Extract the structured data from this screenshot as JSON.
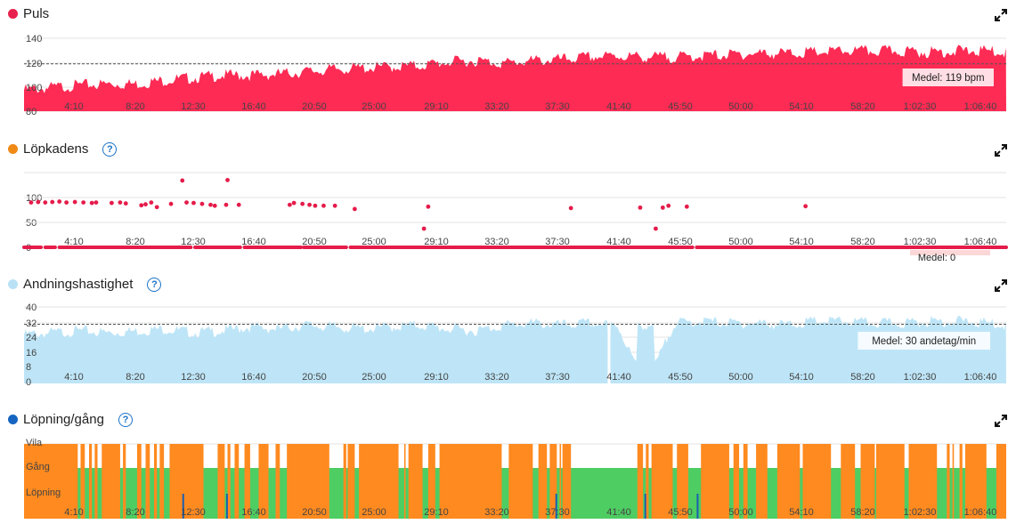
{
  "panels": [
    {
      "title": "Puls",
      "color": "#e8224e",
      "help": false
    },
    {
      "title": "Löpkadens",
      "color": "#f08a16",
      "help": true
    },
    {
      "title": "Andningshastighet",
      "color": "#b9e1f5",
      "help": true
    },
    {
      "title": "Löpning/gång",
      "color": "#1565c0",
      "help": true
    }
  ],
  "help_symbol": "?",
  "x_ticks": [
    "4:10",
    "8:20",
    "12:30",
    "16:40",
    "20:50",
    "25:00",
    "29:10",
    "33:20",
    "37:30",
    "41:40",
    "45:50",
    "50:00",
    "54:10",
    "58:20",
    "1:02:30",
    "1:06:40"
  ],
  "chart_data": [
    {
      "type": "area",
      "name": "Puls",
      "y_ticks": [
        "140",
        "120",
        "100",
        "80"
      ],
      "ylim": [
        80,
        140
      ],
      "avg": 119,
      "avg_label": "Medel: 119 bpm",
      "fill": "#fe2b54",
      "x_minutes": [
        0,
        2,
        4,
        6,
        8,
        10,
        12,
        14,
        16,
        18,
        20,
        22,
        24,
        26,
        28,
        30,
        32,
        34,
        36,
        38,
        40,
        42,
        44,
        46,
        48,
        50,
        52,
        54,
        56,
        58,
        60,
        62,
        64,
        66,
        68,
        69.5
      ],
      "values": [
        100,
        102,
        104,
        105,
        105,
        108,
        110,
        112,
        112,
        113,
        115,
        117,
        118,
        119,
        120,
        123,
        124,
        122,
        124,
        125,
        127,
        128,
        127,
        127,
        128,
        129,
        130,
        130,
        131,
        132,
        132,
        132,
        131,
        132,
        132,
        131
      ]
    },
    {
      "type": "scatter",
      "name": "Löpkadens",
      "y_ticks": [
        "100",
        "50",
        "0"
      ],
      "ylim": [
        0,
        160
      ],
      "avg_label": "Medel: 0",
      "color": "#e51b4a",
      "points": [
        [
          0.5,
          96
        ],
        [
          1.0,
          97
        ],
        [
          1.5,
          96
        ],
        [
          2.0,
          97
        ],
        [
          2.5,
          98
        ],
        [
          3.0,
          96
        ],
        [
          3.6,
          97
        ],
        [
          4.2,
          96
        ],
        [
          4.8,
          95
        ],
        [
          5.1,
          96
        ],
        [
          6.2,
          95
        ],
        [
          6.8,
          96
        ],
        [
          7.2,
          94
        ],
        [
          8.3,
          90
        ],
        [
          8.6,
          92
        ],
        [
          9.0,
          96
        ],
        [
          9.4,
          86
        ],
        [
          10.4,
          93
        ],
        [
          11.2,
          143
        ],
        [
          11.5,
          96
        ],
        [
          12.0,
          95
        ],
        [
          12.6,
          93
        ],
        [
          13.2,
          91
        ],
        [
          13.5,
          89
        ],
        [
          14.4,
          144
        ],
        [
          14.3,
          91
        ],
        [
          15.2,
          91
        ],
        [
          18.8,
          91
        ],
        [
          19.1,
          95
        ],
        [
          19.7,
          93
        ],
        [
          20.2,
          91
        ],
        [
          20.6,
          89
        ],
        [
          21.2,
          89
        ],
        [
          22.0,
          89
        ],
        [
          23.4,
          82
        ],
        [
          28.6,
          87
        ],
        [
          28.3,
          40
        ],
        [
          38.7,
          84
        ],
        [
          43.6,
          85
        ],
        [
          44.7,
          40
        ],
        [
          45.2,
          85
        ],
        [
          45.6,
          89
        ],
        [
          46.9,
          87
        ],
        [
          55.3,
          88
        ]
      ],
      "zero_gaps": [
        [
          1.2,
          1.5
        ],
        [
          2.2,
          2.5
        ],
        [
          11.8,
          12.1
        ],
        [
          15.3,
          15.6
        ],
        [
          19.6,
          19.8
        ],
        [
          22.8,
          23.1
        ],
        [
          47.3,
          47.6
        ]
      ]
    },
    {
      "type": "area",
      "name": "Andningshastighet",
      "y_ticks": [
        "40",
        "32",
        "24",
        "16",
        "8",
        "0"
      ],
      "ylim": [
        0,
        40
      ],
      "avg": 30,
      "avg_label": "Medel: 30 andetag/min",
      "fill": "#bee5f7",
      "x_minutes": [
        0,
        2,
        4,
        6,
        8,
        10,
        12,
        14,
        16,
        18,
        20,
        22,
        24,
        26,
        28,
        30,
        32,
        34,
        36,
        38,
        40,
        42,
        44,
        46,
        48,
        50,
        52,
        54,
        56,
        58,
        60,
        62,
        64,
        66,
        68,
        69.5
      ],
      "values": [
        27,
        28,
        29,
        28,
        29,
        30,
        28,
        29,
        31,
        30,
        32,
        31,
        30,
        31,
        32,
        30,
        29,
        32,
        33,
        32,
        33,
        32,
        0,
        33,
        34,
        33,
        33,
        32,
        34,
        34,
        33,
        33,
        34,
        34,
        33,
        32
      ],
      "gap": [
        41.3,
        41.5
      ]
    },
    {
      "type": "area",
      "name": "Löpning/gång",
      "y_ticks": [
        "Vila",
        "Gång",
        "Löpning"
      ],
      "colors": {
        "run": "#ff8a1f",
        "walk": "#4ecd62",
        "mark": "#1b5fb0"
      },
      "run_segments": [
        [
          0,
          3.8
        ],
        [
          4.0,
          4.3
        ],
        [
          4.6,
          4.8
        ],
        [
          5.0,
          5.2
        ],
        [
          5.5,
          6.8
        ],
        [
          7.0,
          7.2
        ],
        [
          8.0,
          8.3
        ],
        [
          8.6,
          8.9
        ],
        [
          9.2,
          9.4
        ],
        [
          9.6,
          9.9
        ],
        [
          10.3,
          12.7
        ],
        [
          13.7,
          14.2
        ],
        [
          14.4,
          14.6
        ],
        [
          14.9,
          15.2
        ],
        [
          15.6,
          16.0
        ],
        [
          16.6,
          17.3
        ],
        [
          17.8,
          18.1
        ],
        [
          18.6,
          21.6
        ],
        [
          22.6,
          22.8
        ],
        [
          22.9,
          23.4
        ],
        [
          23.7,
          26.5
        ],
        [
          26.9,
          27.0
        ],
        [
          27.2,
          28.2
        ],
        [
          28.6,
          29.1
        ],
        [
          29.4,
          33.8
        ],
        [
          34.3,
          36.0
        ],
        [
          36.4,
          37.0
        ],
        [
          37.2,
          37.7
        ],
        [
          37.9,
          38.0
        ],
        [
          38.1,
          38.7
        ],
        [
          43.4,
          43.8
        ],
        [
          44.0,
          44.2
        ],
        [
          44.4,
          45.9
        ],
        [
          46.2,
          47.0
        ],
        [
          47.9,
          49.9
        ],
        [
          50.2,
          50.6
        ],
        [
          50.9,
          51.2
        ],
        [
          51.8,
          52.6
        ],
        [
          53.3,
          54.9
        ],
        [
          55.1,
          57.1
        ],
        [
          57.8,
          58.8
        ],
        [
          59.2,
          60.2
        ],
        [
          60.3,
          62.3
        ],
        [
          62.6,
          64.6
        ],
        [
          65.3,
          65.5
        ],
        [
          65.7,
          65.8
        ],
        [
          66.2,
          66.4
        ],
        [
          66.6,
          68.1
        ],
        [
          68.8,
          69.5
        ]
      ],
      "marks": [
        11.2,
        14.3,
        37.6,
        43.9,
        47.6
      ]
    }
  ]
}
